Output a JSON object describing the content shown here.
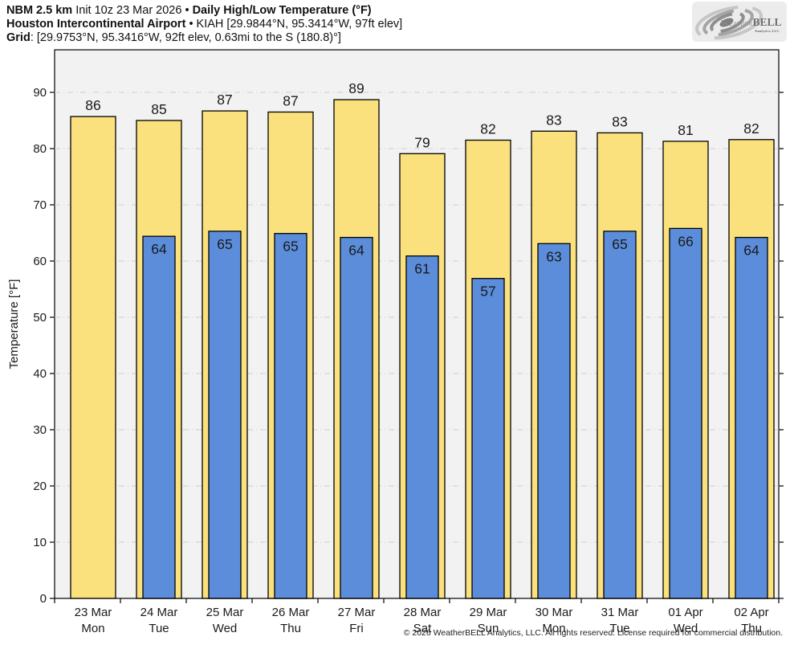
{
  "header": {
    "model": "NBM 2.5 km",
    "init": "Init 10z 23 Mar 2026",
    "bullet": "•",
    "product": "Daily High/Low Temperature (°F)",
    "station_name": "Houston Intercontinental Airport",
    "station_details": "KIAH [29.9844°N, 95.3414°W, 97ft elev]",
    "grid_label": "Grid",
    "grid_details": ": [29.9753°N, 95.3416°W, 92ft elev, 0.63mi to the S (180.8)°]"
  },
  "logo": {
    "brand_part1": "Weather",
    "brand_part2": "BELL",
    "brand_sub": "Analytics LLC"
  },
  "chart_data": {
    "type": "bar",
    "title": "NBM 2.5 km Init 10z 23 Mar 2026 • Daily High/Low Temperature (°F)",
    "subtitle": "Houston Intercontinental Airport • KIAH",
    "xlabel": "",
    "ylabel": "Temperature [°F]",
    "ylim": [
      0,
      97.5
    ],
    "yticks": [
      0,
      10,
      20,
      30,
      40,
      50,
      60,
      70,
      80,
      90
    ],
    "grid": true,
    "legend_position": "none",
    "categories": [
      {
        "date": "23 Mar",
        "day": "Mon"
      },
      {
        "date": "24 Mar",
        "day": "Tue"
      },
      {
        "date": "25 Mar",
        "day": "Wed"
      },
      {
        "date": "26 Mar",
        "day": "Thu"
      },
      {
        "date": "27 Mar",
        "day": "Fri"
      },
      {
        "date": "28 Mar",
        "day": "Sat"
      },
      {
        "date": "29 Mar",
        "day": "Sun"
      },
      {
        "date": "30 Mar",
        "day": "Mon"
      },
      {
        "date": "31 Mar",
        "day": "Tue"
      },
      {
        "date": "01 Apr",
        "day": "Wed"
      },
      {
        "date": "02 Apr",
        "day": "Thu"
      }
    ],
    "series": [
      {
        "name": "Daily High",
        "color": "#FAE17D",
        "values": [
          86,
          85,
          87,
          87,
          89,
          79,
          82,
          83,
          83,
          81,
          82
        ],
        "plotted": [
          85.7,
          85.0,
          86.7,
          86.5,
          88.7,
          79.1,
          81.5,
          83.1,
          82.8,
          81.3,
          81.6
        ]
      },
      {
        "name": "Daily Low",
        "color": "#5B8DDB",
        "values": [
          null,
          64,
          65,
          65,
          64,
          61,
          57,
          63,
          65,
          66,
          64
        ],
        "plotted": [
          null,
          64.4,
          65.3,
          64.9,
          64.2,
          60.9,
          56.9,
          63.1,
          65.3,
          65.8,
          64.2
        ]
      }
    ],
    "colors": {
      "plot_bg": "#F2F2F2",
      "grid": "#CFCFCF",
      "bar_border": "#000000",
      "text": "#1A1A1A"
    }
  },
  "footer": {
    "copyright": "© 2026 WeatherBELL Analytics, LLC. All rights reserved. License required for commercial distribution."
  }
}
